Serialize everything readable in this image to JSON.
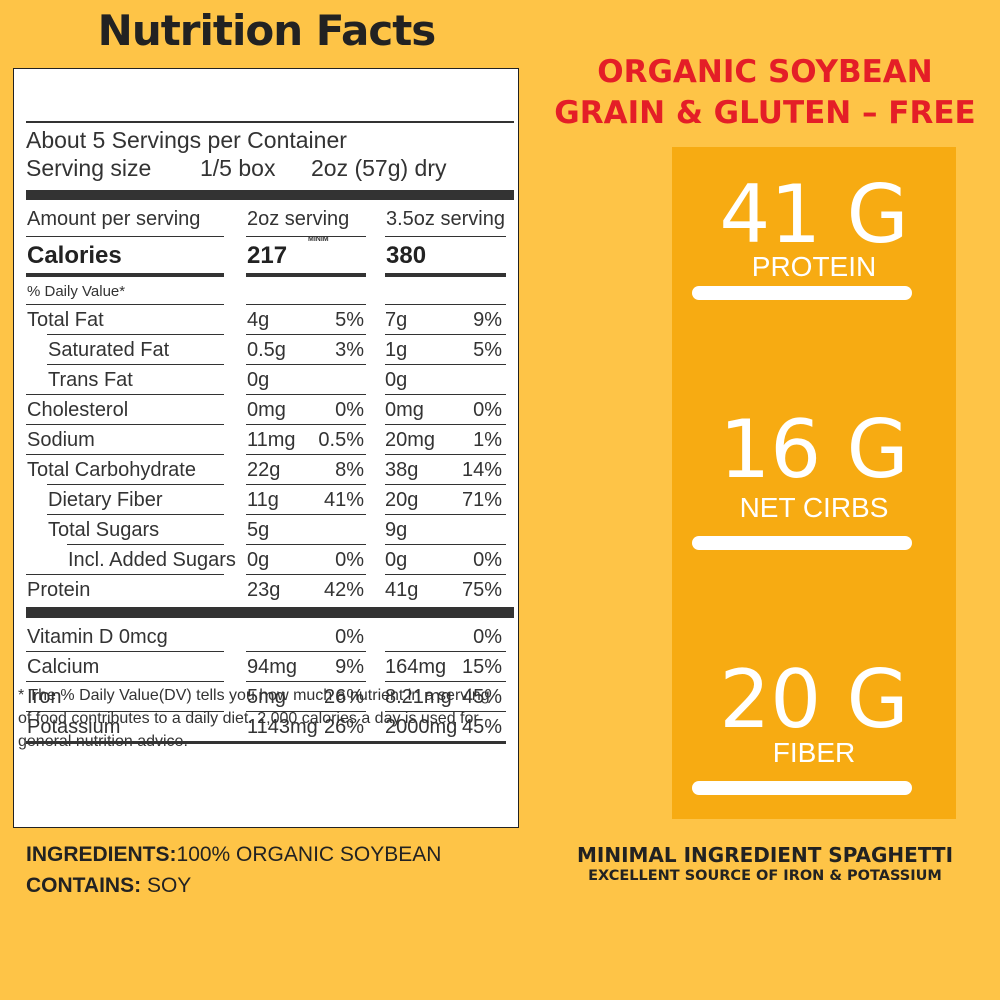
{
  "label": {
    "title": "Nutrition Facts",
    "servings_per_container": "About 5 Servings per Container",
    "serving_size_label": "Serving size",
    "serving_size_value": "1/5 box",
    "serving_size_weight": "2oz (57g) dry",
    "amount_per_serving": "Amount per serving",
    "col1_header": "2oz serving",
    "col2_header": "3.5oz serving",
    "calories_label": "Calories",
    "calories_col1": "217",
    "calories_col2": "380",
    "daily_value_header": "% Daily Value*",
    "stray_mark": "MINIM",
    "nutrients": [
      {
        "name": "Total Fat",
        "a1": "4g",
        "p1": "5%",
        "a2": "7g",
        "p2": "9%"
      },
      {
        "name": "Saturated Fat",
        "a1": "0.5g",
        "p1": "3%",
        "a2": "1g",
        "p2": "5%"
      },
      {
        "name": "Trans Fat",
        "a1": "0g",
        "p1": "",
        "a2": "0g",
        "p2": ""
      },
      {
        "name": "Cholesterol",
        "a1": "0mg",
        "p1": "0%",
        "a2": "0mg",
        "p2": "0%"
      },
      {
        "name": "Sodium",
        "a1": "11mg",
        "p1": "0.5%",
        "a2": "20mg",
        "p2": "1%"
      },
      {
        "name": "Total Carbohydrate",
        "a1": "22g",
        "p1": "8%",
        "a2": "38g",
        "p2": "14%"
      },
      {
        "name": "Dietary Fiber",
        "a1": "11g",
        "p1": "41%",
        "a2": "20g",
        "p2": "71%"
      },
      {
        "name": "Total Sugars",
        "a1": "5g",
        "p1": "",
        "a2": "9g",
        "p2": ""
      },
      {
        "name": "Incl. Added Sugars",
        "a1": "0g",
        "p1": "0%",
        "a2": "0g",
        "p2": "0%"
      },
      {
        "name": "Protein",
        "a1": "23g",
        "p1": "42%",
        "a2": "41g",
        "p2": "75%"
      }
    ],
    "vitamins": [
      {
        "name": "Vitamin D 0mcg",
        "a1": "",
        "p1": "0%",
        "a2": "",
        "p2": "0%"
      },
      {
        "name": "Calcium",
        "a1": "94mg",
        "p1": "9%",
        "a2": "164mg",
        "p2": "15%"
      },
      {
        "name": "Iron",
        "a1": "5mg",
        "p1": "26%",
        "a2": "8.21mg",
        "p2": "45%"
      },
      {
        "name": "Potassium",
        "a1": "1143mg",
        "p1": "26%",
        "a2": "2000mg",
        "p2": "45%"
      }
    ],
    "footnote": "* The % Daily Value(DV) tells you how much a nutrient in a serving of food contributes to a daily diet. 2,000 calories a day is used for general nutrition advice."
  },
  "ingredients": {
    "label": "INGREDIENTS:",
    "value": "100% ORGANIC SOYBEAN",
    "contains_label": "CONTAINS:",
    "contains_value": "SOY"
  },
  "promo": {
    "headline_line1": "ORGANIC SOYBEAN",
    "headline_line2": "GRAIN & GLUTEN – FREE",
    "stat1_value": "41 G",
    "stat1_label": "PROTEIN",
    "stat2_value": "16 G",
    "stat2_label": "NET CIRBS",
    "stat3_value": "20 G",
    "stat3_label": "FIBER",
    "tagline1": "MINIMAL INGREDIENT SPAGHETTI",
    "tagline2": "EXCELLENT SOURCE OF IRON & POTASSIUM"
  },
  "colors": {
    "background": "#fec447",
    "column": "#f7ab12",
    "headline": "#e41e27"
  }
}
